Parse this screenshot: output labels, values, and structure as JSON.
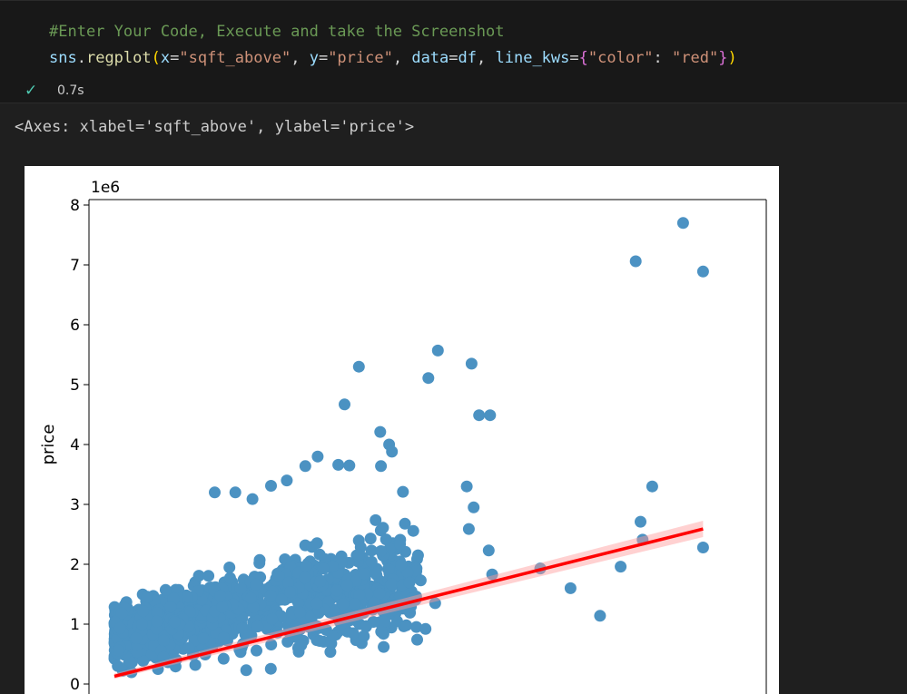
{
  "cell": {
    "code_lines": [
      [
        {
          "t": "#Enter Your Code, Execute and take the Screenshot",
          "c": "comment"
        }
      ],
      [
        {
          "t": "sns",
          "c": "var"
        },
        {
          "t": ".",
          "c": "punc"
        },
        {
          "t": "regplot",
          "c": "func"
        },
        {
          "t": "(",
          "c": "brace1"
        },
        {
          "t": "x",
          "c": "var"
        },
        {
          "t": "=",
          "c": "punc"
        },
        {
          "t": "\"sqft_above\"",
          "c": "str"
        },
        {
          "t": ", ",
          "c": "punc"
        },
        {
          "t": "y",
          "c": "var"
        },
        {
          "t": "=",
          "c": "punc"
        },
        {
          "t": "\"price\"",
          "c": "str"
        },
        {
          "t": ", ",
          "c": "punc"
        },
        {
          "t": "data",
          "c": "var"
        },
        {
          "t": "=",
          "c": "punc"
        },
        {
          "t": "df",
          "c": "var"
        },
        {
          "t": ", ",
          "c": "punc"
        },
        {
          "t": "line_kws",
          "c": "var"
        },
        {
          "t": "=",
          "c": "punc"
        },
        {
          "t": "{",
          "c": "brace2"
        },
        {
          "t": "\"color\"",
          "c": "str"
        },
        {
          "t": ": ",
          "c": "punc"
        },
        {
          "t": "\"red\"",
          "c": "str"
        },
        {
          "t": "}",
          "c": "brace2"
        },
        {
          "t": ")",
          "c": "brace1"
        }
      ]
    ],
    "status_icon": "check-icon",
    "status_time": "0.7s"
  },
  "output": {
    "text": "<Axes: xlabel='sqft_above', ylabel='price'>"
  },
  "colors": {
    "comment": "#6a9955",
    "func": "#dcdcaa",
    "var": "#9cdcfe",
    "str": "#ce9178",
    "punc": "#d4d4d4",
    "brace1": "#ffd700",
    "brace2": "#da70d6",
    "point": "#1f77b4",
    "line": "#ff0000"
  },
  "chart_data": {
    "type": "scatter",
    "title": "",
    "xlabel": "",
    "ylabel": "price",
    "y_offset_label": "1e6",
    "x_range_data": [
      290,
      9410
    ],
    "ylim": [
      0,
      8000000
    ],
    "y_ticks": [
      0,
      1000000,
      2000000,
      3000000,
      4000000,
      5000000,
      6000000,
      7000000,
      8000000
    ],
    "y_tick_labels": [
      "0",
      "1",
      "2",
      "3",
      "4",
      "5",
      "6",
      "7",
      "8"
    ],
    "grid": false,
    "points": [
      [
        8570,
        7700000
      ],
      [
        7880,
        7060000
      ],
      [
        8860,
        6890000
      ],
      [
        5000,
        5570000
      ],
      [
        5490,
        5350000
      ],
      [
        4860,
        5110000
      ],
      [
        3850,
        5300000
      ],
      [
        5600,
        4490000
      ],
      [
        5760,
        4490000
      ],
      [
        3640,
        4670000
      ],
      [
        4160,
        4210000
      ],
      [
        4290,
        4000000
      ],
      [
        4330,
        3880000
      ],
      [
        4170,
        3640000
      ],
      [
        3250,
        3800000
      ],
      [
        3550,
        3660000
      ],
      [
        3070,
        3640000
      ],
      [
        3710,
        3650000
      ],
      [
        8860,
        2280000
      ],
      [
        8120,
        3300000
      ],
      [
        7950,
        2710000
      ],
      [
        7980,
        2410000
      ],
      [
        7660,
        1960000
      ],
      [
        7360,
        1140000
      ],
      [
        6490,
        1930000
      ],
      [
        6930,
        1600000
      ],
      [
        5740,
        2230000
      ],
      [
        5790,
        1830000
      ],
      [
        5520,
        2950000
      ],
      [
        5450,
        2590000
      ],
      [
        5420,
        3300000
      ],
      [
        2050,
        3200000
      ],
      [
        2300,
        3090000
      ],
      [
        2800,
        3400000
      ],
      [
        2570,
        3310000
      ],
      [
        1750,
        3200000
      ],
      [
        4750,
        1730000
      ],
      [
        4960,
        1350000
      ],
      [
        4710,
        2150000
      ],
      [
        4490,
        3210000
      ],
      [
        4170,
        2220000
      ],
      [
        4020,
        2430000
      ],
      [
        4650,
        1430000
      ],
      [
        4820,
        920000
      ],
      [
        4540,
        980000
      ],
      [
        4210,
        620000
      ],
      [
        3920,
        800000
      ],
      [
        3590,
        1000000
      ],
      [
        3280,
        720000
      ],
      [
        3010,
        650000
      ]
    ],
    "dense_region": {
      "x": [
        290,
        4700
      ],
      "price_at_min_x": [
        100000,
        1600000
      ],
      "price_at_max_x": [
        400000,
        3100000
      ],
      "count": 1100
    },
    "regression_line": {
      "x": [
        290,
        8860
      ],
      "y": [
        130000,
        2590000
      ]
    }
  }
}
